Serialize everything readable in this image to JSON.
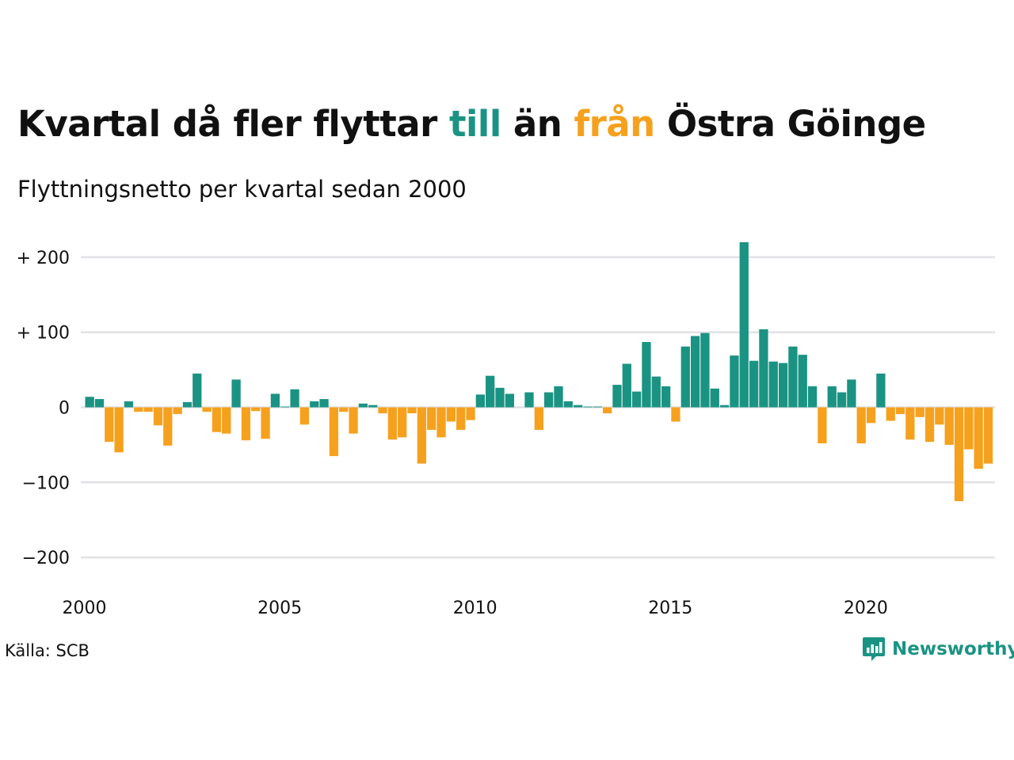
{
  "title": {
    "part1": "Kvartal då fler flyttar ",
    "highlight_in": "till",
    "part2": " än ",
    "highlight_out": "från",
    "part3": " Östra Göinge"
  },
  "subtitle": "Flyttningsnetto per kvartal sedan 2000",
  "source": "Källa: SCB",
  "logo_text": "Newsworthy",
  "colors": {
    "positive": "#1a9383",
    "negative": "#f5a11e",
    "grid": "#e1e1e6",
    "text": "#111111"
  },
  "chart_data": {
    "type": "bar",
    "title": "Kvartal då fler flyttar till än från Östra Göinge",
    "subtitle": "Flyttningsnetto per kvartal sedan 2000",
    "start": "2000 Q1",
    "frequency": "quarterly",
    "ylim": [
      -230,
      230
    ],
    "yticks": [
      200,
      100,
      0,
      -100,
      -200
    ],
    "ytick_labels": [
      "+ 200",
      "+ 100",
      "0",
      "−100",
      "−200"
    ],
    "xticks": [
      "2000",
      "2005",
      "2010",
      "2015",
      "2020"
    ],
    "grid": true,
    "values": [
      14,
      11,
      -46,
      -60,
      8,
      -6,
      -6,
      -24,
      -51,
      -9,
      7,
      45,
      -6,
      -33,
      -35,
      37,
      -44,
      -5,
      -42,
      18,
      1,
      24,
      -23,
      8,
      11,
      -65,
      -6,
      -35,
      5,
      3,
      -8,
      -43,
      -40,
      -8,
      -75,
      -30,
      -40,
      -19,
      -30,
      -17,
      17,
      42,
      26,
      18,
      0,
      20,
      -30,
      20,
      28,
      8,
      3,
      1,
      1,
      -8,
      30,
      58,
      21,
      87,
      41,
      28,
      -19,
      81,
      95,
      99,
      25,
      3,
      69,
      220,
      62,
      104,
      61,
      59,
      81,
      70,
      28,
      -48,
      28,
      20,
      37,
      -48,
      -21,
      45,
      -18,
      -9,
      -43,
      -13,
      -46,
      -23,
      -50,
      -125,
      -56,
      -82,
      -75
    ]
  }
}
